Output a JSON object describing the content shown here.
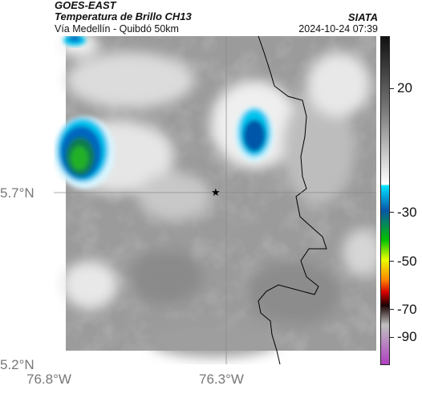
{
  "header": {
    "satellite": "GOES-EAST",
    "product": "Temperatura de Brillo CH13",
    "region": "Vía Medellín - Quibdó 50km",
    "brand": "SIATA",
    "timestamp": "2024-10-24 07:39"
  },
  "axes": {
    "lat_labels": [
      "5.7°N",
      "5.2°N"
    ],
    "lon_labels": [
      "76.8°W",
      "76.3°W"
    ]
  },
  "colorbar": {
    "ticks": [
      "20",
      "-30",
      "-50",
      "-70",
      "-90"
    ],
    "stops": [
      {
        "c": "#111111"
      },
      {
        "c": "#777777"
      },
      {
        "c": "#ffffff"
      },
      {
        "c": "#00e5ff"
      },
      {
        "c": "#0a56a8"
      },
      {
        "c": "#00c000"
      },
      {
        "c": "#e8ff00"
      },
      {
        "c": "#ff8a00"
      },
      {
        "c": "#d60000"
      },
      {
        "c": "#1a0000"
      },
      {
        "c": "#c0c0c0"
      },
      {
        "c": "#b040c0"
      }
    ]
  },
  "map": {
    "marker": "location-star",
    "colors": {
      "cloud_grey": "#9a9a9a",
      "cloud_white": "#f2f2f2",
      "cold_blue": "#0057a8",
      "cold_cyan": "#00c6f0",
      "coldest_green": "#1aa32a"
    }
  }
}
